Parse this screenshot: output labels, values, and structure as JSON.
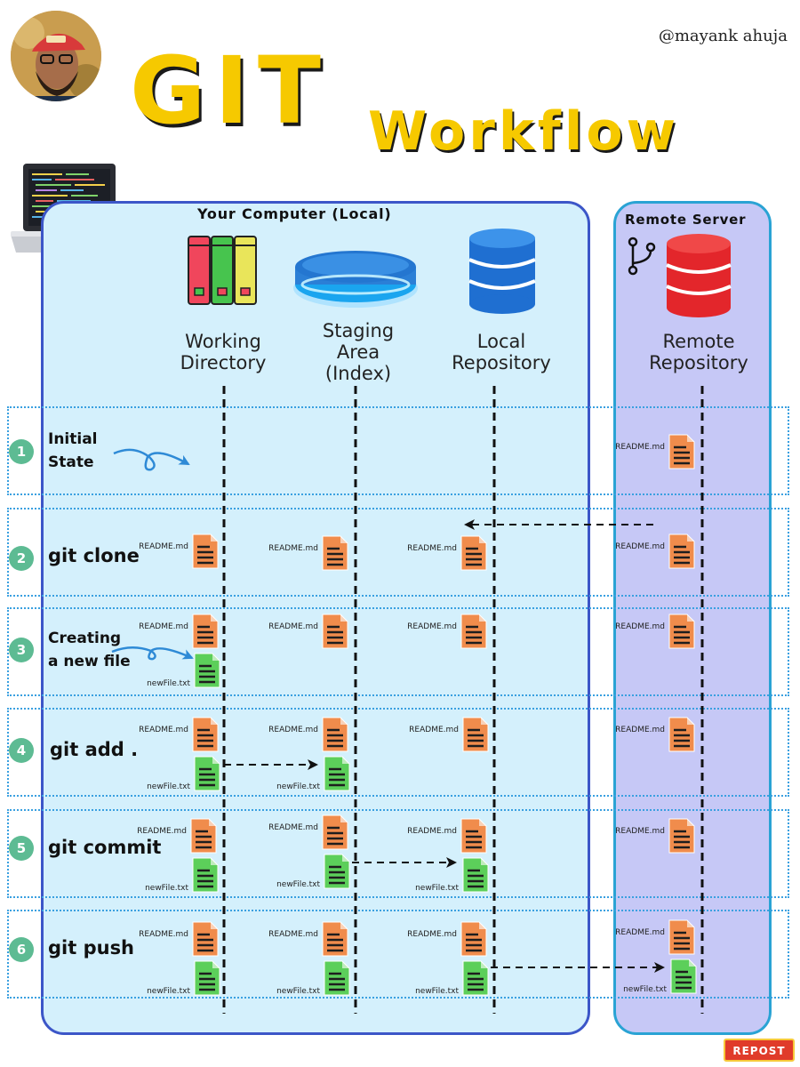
{
  "header": {
    "handle": "@mayank ahuja",
    "title_main": "GIT",
    "title_sub": "Workflow"
  },
  "panels": {
    "local_title": "Your Computer (Local)",
    "remote_title": "Remote Server"
  },
  "columns": {
    "working_directory": "Working\nDirectory",
    "staging_area": "Staging\nArea\n(Index)",
    "local_repository": "Local\nRepository",
    "remote_repository": "Remote\nRepository"
  },
  "steps": [
    {
      "number": "1",
      "label": "Initial\nState"
    },
    {
      "number": "2",
      "label": "git clone"
    },
    {
      "number": "3",
      "label": "Creating\na new file"
    },
    {
      "number": "4",
      "label": "git add ."
    },
    {
      "number": "5",
      "label": "git commit"
    },
    {
      "number": "6",
      "label": "git push"
    }
  ],
  "files": {
    "readme": "README.md",
    "newfile": "newFile.txt"
  },
  "badge": {
    "label": "REPOST"
  },
  "colors": {
    "title_yellow": "#f6c900",
    "local_panel_bg": "#d4f0fc",
    "remote_panel_bg": "#c6c8f6",
    "readme_file": "#f08c4c",
    "newfile_file": "#5ccf5a",
    "step_circle": "#5dbb93"
  },
  "icons": {
    "working_directory": "books-icon",
    "staging_area": "glowing-disk-icon",
    "local_repository": "database-icon",
    "remote_repository": "database-icon",
    "branch": "git-branch-icon",
    "laptop": "laptop-icon"
  }
}
